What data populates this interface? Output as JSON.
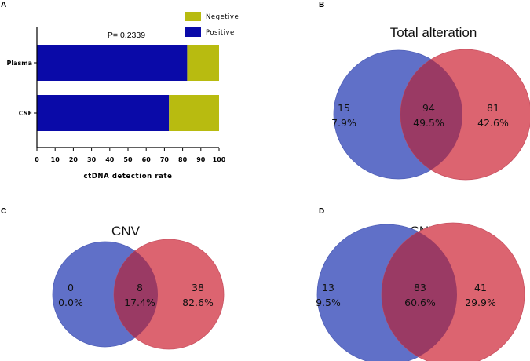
{
  "panel_letters": {
    "a": "A",
    "b": "B",
    "c": "C",
    "d": "D"
  },
  "colors": {
    "positive": "#0a0aa8",
    "negative": "#b8bb10",
    "venn_left": "#6070c8",
    "venn_right": "#dc6470",
    "venn_overlap": "#9a3a64"
  },
  "chart_data": [
    {
      "panel": "A",
      "type": "bar",
      "orientation": "horizontal",
      "stacked": true,
      "categories": [
        "Plasma",
        "CSF"
      ],
      "series": [
        {
          "name": "Positive",
          "values": [
            82.5,
            72.5
          ]
        },
        {
          "name": "Negetive",
          "values": [
            17.5,
            27.5
          ]
        }
      ],
      "xlabel": "ctDNA detection rate",
      "xlim": [
        0,
        100
      ],
      "xticks": [
        "0",
        "10",
        "20",
        "30",
        "40",
        "50",
        "60",
        "70",
        "80",
        "90",
        "100"
      ],
      "legend": [
        "Negetive",
        "Positive"
      ],
      "legend_position": "top-right",
      "annotation": "P= 0.2339"
    },
    {
      "panel": "B",
      "type": "venn",
      "title": "Total alteration",
      "left": {
        "count": "15",
        "pct": "7.9%"
      },
      "overlap": {
        "count": "94",
        "pct": "49.5%"
      },
      "right": {
        "count": "81",
        "pct": "42.6%"
      }
    },
    {
      "panel": "C",
      "type": "venn",
      "title": "CNV",
      "left": {
        "count": "0",
        "pct": "0.0%"
      },
      "overlap": {
        "count": "8",
        "pct": "17.4%"
      },
      "right": {
        "count": "38",
        "pct": "82.6%"
      }
    },
    {
      "panel": "D",
      "type": "venn",
      "title": "SNV",
      "left": {
        "count": "13",
        "pct": "9.5%"
      },
      "overlap": {
        "count": "83",
        "pct": "60.6%"
      },
      "right": {
        "count": "41",
        "pct": "29.9%"
      }
    }
  ]
}
